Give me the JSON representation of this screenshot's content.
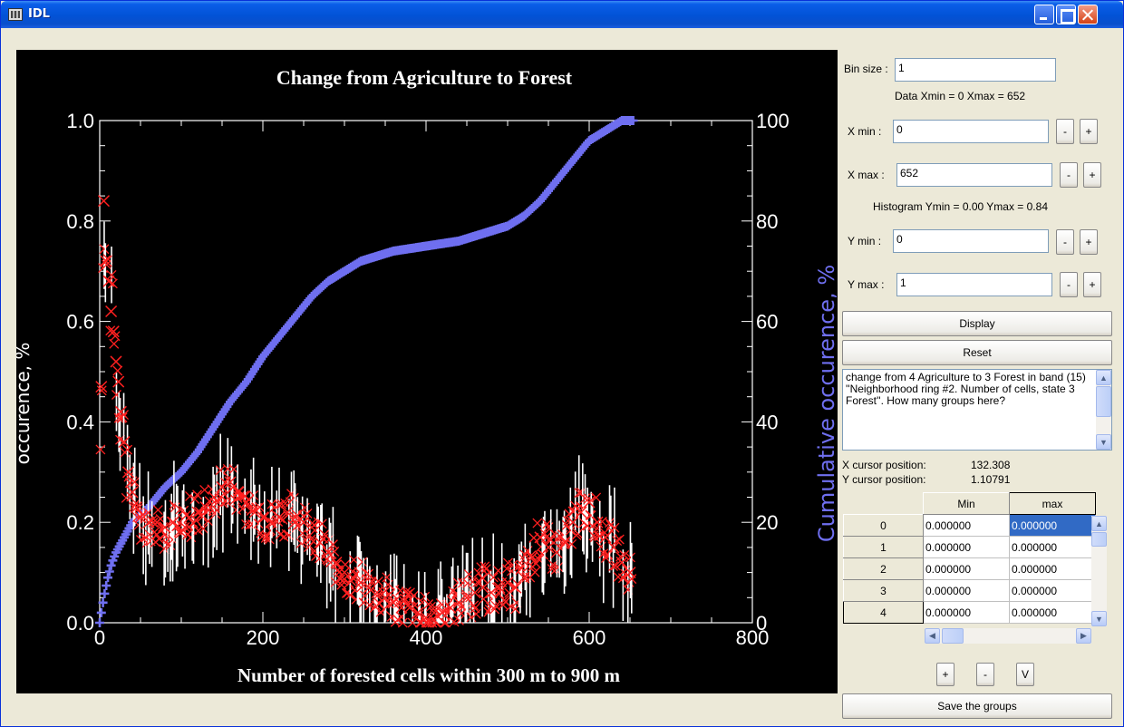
{
  "window": {
    "title": "IDL"
  },
  "chart_data": {
    "type": "scatter",
    "title": "Change from Agriculture to Forest",
    "xlabel": "Number of forested cells within 300 m to 900 m",
    "ylabel": "occurence, %",
    "y2label": "Cumulative occurence, %",
    "xlim": [
      0,
      800
    ],
    "ylim": [
      0,
      1.0
    ],
    "y2lim": [
      0,
      100
    ],
    "x_ticks": [
      "0",
      "200",
      "400",
      "600",
      "800"
    ],
    "y_ticks": [
      "0.0",
      "0.2",
      "0.4",
      "0.6",
      "0.8",
      "1.0"
    ],
    "y2_ticks": [
      "0",
      "20",
      "40",
      "60",
      "80",
      "100"
    ],
    "series": [
      {
        "axis": "left",
        "color": "#FF2020",
        "marker": "x",
        "x": [
          2,
          5,
          8,
          11,
          14,
          17,
          20,
          23,
          26,
          30,
          35,
          40,
          45,
          50,
          60,
          70,
          80,
          90,
          100,
          110,
          120,
          130,
          140,
          150,
          160,
          170,
          180,
          190,
          200,
          210,
          220,
          230,
          240,
          250,
          260,
          270,
          280,
          290,
          300,
          310,
          320,
          330,
          340,
          350,
          360,
          370,
          380,
          390,
          400,
          410,
          420,
          430,
          440,
          450,
          460,
          470,
          480,
          490,
          500,
          510,
          520,
          530,
          540,
          550,
          560,
          570,
          580,
          590,
          600,
          610,
          620,
          630,
          640,
          650
        ],
        "y": [
          0.47,
          0.84,
          0.72,
          0.68,
          0.62,
          0.58,
          0.52,
          0.48,
          0.42,
          0.36,
          0.3,
          0.26,
          0.23,
          0.21,
          0.2,
          0.2,
          0.19,
          0.2,
          0.18,
          0.21,
          0.22,
          0.23,
          0.25,
          0.27,
          0.28,
          0.26,
          0.24,
          0.22,
          0.21,
          0.2,
          0.21,
          0.22,
          0.21,
          0.2,
          0.19,
          0.16,
          0.14,
          0.12,
          0.1,
          0.09,
          0.08,
          0.07,
          0.06,
          0.05,
          0.04,
          0.03,
          0.03,
          0.02,
          0.01,
          0.02,
          0.02,
          0.03,
          0.04,
          0.05,
          0.06,
          0.07,
          0.06,
          0.07,
          0.08,
          0.07,
          0.09,
          0.13,
          0.17,
          0.15,
          0.14,
          0.16,
          0.2,
          0.22,
          0.24,
          0.2,
          0.17,
          0.15,
          0.12,
          0.1
        ]
      },
      {
        "axis": "right",
        "color": "#6F6FF0",
        "marker": "+",
        "x": [
          0,
          2,
          5,
          10,
          15,
          20,
          30,
          40,
          60,
          80,
          100,
          120,
          140,
          160,
          180,
          200,
          220,
          240,
          260,
          280,
          300,
          320,
          340,
          360,
          380,
          400,
          420,
          440,
          460,
          480,
          500,
          520,
          540,
          560,
          580,
          600,
          620,
          640,
          660
        ],
        "y": [
          0,
          2,
          5,
          9,
          12,
          14,
          17,
          20,
          23,
          27,
          30,
          34,
          39,
          44,
          48,
          53,
          57,
          61,
          65,
          68,
          70,
          72,
          73,
          74,
          74.5,
          75,
          75.5,
          76,
          77,
          78,
          79,
          81,
          84,
          88,
          92,
          96,
          98,
          100,
          100
        ]
      }
    ]
  },
  "controls": {
    "bin_size_label": "Bin size :",
    "bin_size_value": "1",
    "data_range_text": "Data Xmin = 0 Xmax = 652",
    "xmin_label": "X min :",
    "xmin_value": "0",
    "xmax_label": "X max :",
    "xmax_value": "652",
    "hist_range_text": "Histogram Ymin = 0.00 Ymax = 0.84",
    "ymin_label": "Y min :",
    "ymin_value": "0",
    "ymax_label": "Y max :",
    "ymax_value": "1",
    "minus": "-",
    "plus": "+",
    "display_label": "Display",
    "reset_label": "Reset",
    "notes_text": "change from 4 Agriculture to 3 Forest in band (15) ''Neighborhood ring #2. Number of cells, state 3 Forest''. How many groups here?",
    "x_cursor_label": "X cursor position:",
    "x_cursor_value": "132.308",
    "y_cursor_label": "Y cursor position:",
    "y_cursor_value": "1.10791"
  },
  "groups_table": {
    "headers": [
      "Min",
      "max"
    ],
    "rows": [
      {
        "index": "0",
        "min": "0.000000",
        "max": "0.000000"
      },
      {
        "index": "1",
        "min": "0.000000",
        "max": "0.000000"
      },
      {
        "index": "2",
        "min": "0.000000",
        "max": "0.000000"
      },
      {
        "index": "3",
        "min": "0.000000",
        "max": "0.000000"
      },
      {
        "index": "4",
        "min": "0.000000",
        "max": "0.000000"
      }
    ]
  },
  "group_buttons": {
    "add": "+",
    "remove": "-",
    "v": "V"
  },
  "save_label": "Save the groups"
}
